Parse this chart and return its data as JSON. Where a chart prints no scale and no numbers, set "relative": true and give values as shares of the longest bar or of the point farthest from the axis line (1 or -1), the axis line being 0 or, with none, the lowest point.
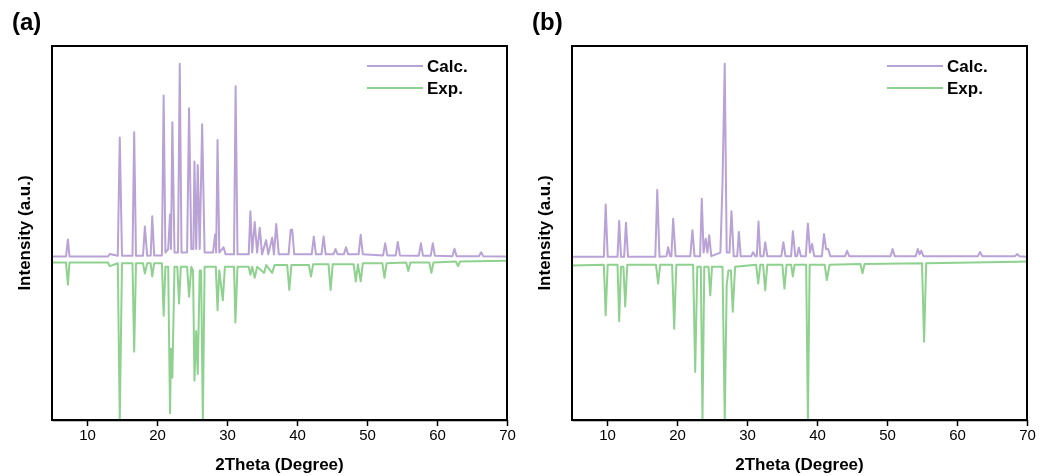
{
  "chart_data": [
    {
      "type": "line",
      "title": "(a)",
      "xlabel": "2Theta (Degree)",
      "ylabel": "Intensity (a.u.)",
      "relative": true,
      "xlim": [
        5,
        70
      ],
      "xticks": [
        10,
        20,
        30,
        40,
        50,
        60,
        70
      ],
      "legend": "top right",
      "grid": false,
      "marker": "none",
      "line_style": "solid",
      "series": [
        {
          "name": "Calc.",
          "color": "#b9a2d6",
          "x": [
            5,
            7.0,
            7.27,
            7.5,
            13.0,
            13.25,
            14.4,
            14.68,
            15.0,
            16.5,
            16.74,
            17.0,
            18.0,
            18.27,
            18.6,
            19.1,
            19.32,
            19.6,
            20.7,
            20.95,
            21.2,
            21.6,
            21.86,
            22.0,
            22.19,
            22.5,
            23.0,
            23.25,
            23.5,
            24.3,
            24.58,
            24.9,
            25.2,
            25.35,
            25.6,
            25.82,
            26.1,
            26.45,
            26.8,
            28.0,
            28.3,
            28.45,
            28.65,
            28.9,
            29.5,
            29.8,
            31.0,
            31.23,
            31.5,
            33.1,
            33.34,
            33.6,
            33.96,
            34.3,
            34.68,
            35.0,
            35.59,
            35.9,
            36.45,
            36.7,
            37.03,
            37.4,
            38.8,
            39.1,
            39.32,
            39.6,
            42.1,
            42.4,
            42.7,
            43.5,
            43.8,
            44.1,
            45.2,
            45.5,
            45.8,
            46.7,
            47.0,
            47.3,
            48.8,
            49.1,
            49.4,
            52.3,
            52.6,
            52.9,
            54.1,
            54.4,
            54.7,
            57.4,
            57.7,
            58.0,
            59.1,
            59.4,
            59.7,
            62.2,
            62.5,
            62.8,
            66.0,
            66.3,
            66.6,
            70
          ],
          "values": [
            0.459,
            0.459,
            0.507,
            0.459,
            0.459,
            0.466,
            0.461,
            0.793,
            0.461,
            0.461,
            0.808,
            0.461,
            0.461,
            0.543,
            0.461,
            0.462,
            0.572,
            0.462,
            0.462,
            0.911,
            0.47,
            0.48,
            0.577,
            0.48,
            0.836,
            0.47,
            0.47,
            1.0,
            0.47,
            0.47,
            0.875,
            0.48,
            0.48,
            0.726,
            0.48,
            0.716,
            0.48,
            0.83,
            0.47,
            0.47,
            0.521,
            0.47,
            0.786,
            0.47,
            0.485,
            0.465,
            0.465,
            0.937,
            0.465,
            0.465,
            0.586,
            0.47,
            0.556,
            0.47,
            0.54,
            0.465,
            0.505,
            0.465,
            0.512,
            0.465,
            0.55,
            0.465,
            0.465,
            0.534,
            0.534,
            0.465,
            0.465,
            0.515,
            0.465,
            0.465,
            0.515,
            0.465,
            0.465,
            0.48,
            0.465,
            0.465,
            0.485,
            0.465,
            0.465,
            0.52,
            0.465,
            0.462,
            0.496,
            0.462,
            0.462,
            0.5,
            0.462,
            0.461,
            0.496,
            0.461,
            0.461,
            0.496,
            0.461,
            0.46,
            0.481,
            0.46,
            0.46,
            0.471,
            0.46,
            0.459
          ]
        },
        {
          "name": "Exp.",
          "color": "#8fd18f",
          "x": [
            5,
            7.0,
            7.27,
            7.5,
            13.0,
            13.25,
            14.4,
            14.68,
            15.0,
            16.5,
            16.74,
            17.0,
            18.0,
            18.27,
            18.6,
            19.1,
            19.32,
            19.6,
            20.7,
            20.95,
            21.2,
            21.6,
            21.86,
            22.0,
            22.19,
            22.5,
            22.9,
            23.15,
            23.4,
            24.3,
            24.58,
            24.9,
            25.15,
            25.35,
            25.6,
            25.82,
            26.1,
            26.3,
            26.55,
            26.8,
            28.4,
            28.65,
            28.9,
            29.4,
            29.7,
            31.0,
            31.2,
            31.5,
            33.1,
            33.34,
            33.6,
            33.96,
            34.3,
            35.3,
            35.6,
            36.45,
            36.8,
            38.6,
            38.9,
            39.2,
            41.7,
            42.0,
            42.3,
            44.5,
            44.8,
            45.1,
            48.1,
            48.4,
            48.7,
            49.1,
            49.4,
            52.2,
            52.5,
            52.8,
            55.6,
            55.9,
            56.2,
            58.9,
            59.2,
            59.5,
            62.7,
            63.0,
            63.3,
            70
          ],
          "values": [
            0.442,
            0.442,
            0.38,
            0.442,
            0.442,
            0.432,
            0.44,
            0,
            0.44,
            0.44,
            0.192,
            0.44,
            0.44,
            0.411,
            0.44,
            0.44,
            0.403,
            0.44,
            0.44,
            0.293,
            0.43,
            0.43,
            0.019,
            0.2,
            0.119,
            0.43,
            0.43,
            0.327,
            0.43,
            0.43,
            0.346,
            0.43,
            0.42,
            0.11,
            0.25,
            0.129,
            0.42,
            0.42,
            0,
            0.43,
            0.43,
            0.308,
            0.42,
            0.336,
            0.43,
            0.43,
            0.274,
            0.43,
            0.43,
            0.408,
            0.43,
            0.399,
            0.43,
            0.413,
            0.435,
            0.413,
            0.435,
            0.435,
            0.365,
            0.435,
            0.435,
            0.403,
            0.437,
            0.437,
            0.365,
            0.437,
            0.437,
            0.389,
            0.437,
            0.389,
            0.44,
            0.44,
            0.399,
            0.44,
            0.442,
            0.418,
            0.442,
            0.442,
            0.413,
            0.442,
            0.445,
            0.432,
            0.445,
            0.447
          ]
        }
      ]
    },
    {
      "type": "line",
      "title": "(b)",
      "xlabel": "2Theta (Degree)",
      "ylabel": "Intensity (a.u.)",
      "relative": true,
      "xlim": [
        5,
        70
      ],
      "xticks": [
        10,
        20,
        30,
        40,
        50,
        60,
        70
      ],
      "legend": "top right",
      "grid": false,
      "marker": "none",
      "line_style": "solid",
      "series": [
        {
          "name": "Calc.",
          "color": "#b9a2d6",
          "x": [
            5,
            9.55,
            9.81,
            10.1,
            11.5,
            11.74,
            12.0,
            12.45,
            12.71,
            13.0,
            16.9,
            17.18,
            17.5,
            18.5,
            18.73,
            19.0,
            19.2,
            19.45,
            19.8,
            21.9,
            22.2,
            22.5,
            23.3,
            23.54,
            23.8,
            24.1,
            24.35,
            24.6,
            24.9,
            26.2,
            26.5,
            26.82,
            27.1,
            27.5,
            27.78,
            28.1,
            28.6,
            28.84,
            29.1,
            30.6,
            30.87,
            31.2,
            31.4,
            31.64,
            31.9,
            32.35,
            32.6,
            32.9,
            34.9,
            35.2,
            35.5,
            36.3,
            36.55,
            36.9,
            37.15,
            37.4,
            37.7,
            38.4,
            38.7,
            39.0,
            39.3,
            39.6,
            40.7,
            41.0,
            41.3,
            41.6,
            41.9,
            44.0,
            44.3,
            44.6,
            50.5,
            50.8,
            51.1,
            54.1,
            54.4,
            54.65,
            54.9,
            55.2,
            63.0,
            63.3,
            63.6,
            68.3,
            68.6,
            68.9,
            70
          ],
          "values": [
            0.458,
            0.458,
            0.605,
            0.458,
            0.458,
            0.559,
            0.458,
            0.458,
            0.554,
            0.458,
            0.458,
            0.646,
            0.458,
            0.46,
            0.485,
            0.46,
            0.46,
            0.565,
            0.46,
            0.46,
            0.533,
            0.46,
            0.46,
            0.621,
            0.47,
            0.509,
            0.47,
            0.519,
            0.46,
            0.47,
            0.663,
            1.0,
            0.47,
            0.47,
            0.586,
            0.46,
            0.46,
            0.528,
            0.46,
            0.46,
            0.471,
            0.46,
            0.46,
            0.557,
            0.46,
            0.46,
            0.499,
            0.46,
            0.46,
            0.499,
            0.46,
            0.46,
            0.53,
            0.46,
            0.46,
            0.484,
            0.46,
            0.46,
            0.552,
            0.47,
            0.494,
            0.46,
            0.46,
            0.522,
            0.48,
            0.48,
            0.46,
            0.46,
            0.475,
            0.46,
            0.46,
            0.48,
            0.46,
            0.46,
            0.48,
            0.465,
            0.475,
            0.46,
            0.46,
            0.472,
            0.46,
            0.46,
            0.466,
            0.46,
            0.458
          ]
        },
        {
          "name": "Exp.",
          "color": "#8fd18f",
          "x": [
            5,
            9.55,
            9.81,
            10.1,
            11.5,
            11.74,
            12.0,
            12.35,
            12.6,
            12.9,
            17.0,
            17.3,
            17.6,
            19.3,
            19.6,
            19.9,
            22.3,
            22.6,
            22.9,
            23.4,
            23.64,
            23.9,
            24.5,
            24.75,
            25.0,
            26.5,
            26.82,
            27.1,
            27.35,
            27.7,
            27.97,
            28.3,
            31.3,
            31.6,
            31.9,
            32.3,
            32.6,
            32.9,
            35.05,
            35.35,
            35.65,
            36.3,
            36.55,
            36.8,
            38.45,
            38.7,
            38.95,
            41.1,
            41.4,
            41.8,
            46.2,
            46.5,
            46.8,
            55.0,
            55.3,
            55.6,
            70
          ],
          "values": [
            0.434,
            0.436,
            0.294,
            0.436,
            0.436,
            0.277,
            0.43,
            0.43,
            0.319,
            0.436,
            0.436,
            0.383,
            0.436,
            0.436,
            0.256,
            0.436,
            0.436,
            0.135,
            0.43,
            0.43,
            0,
            0.43,
            0.43,
            0.35,
            0.43,
            0.43,
            0,
            0.38,
            0.42,
            0.42,
            0.304,
            0.43,
            0.436,
            0.383,
            0.436,
            0.436,
            0.364,
            0.436,
            0.436,
            0.369,
            0.436,
            0.436,
            0.403,
            0.436,
            0.436,
            0,
            0.436,
            0.436,
            0.393,
            0.436,
            0.438,
            0.412,
            0.438,
            0.44,
            0.22,
            0.44,
            0.445
          ]
        }
      ]
    }
  ]
}
